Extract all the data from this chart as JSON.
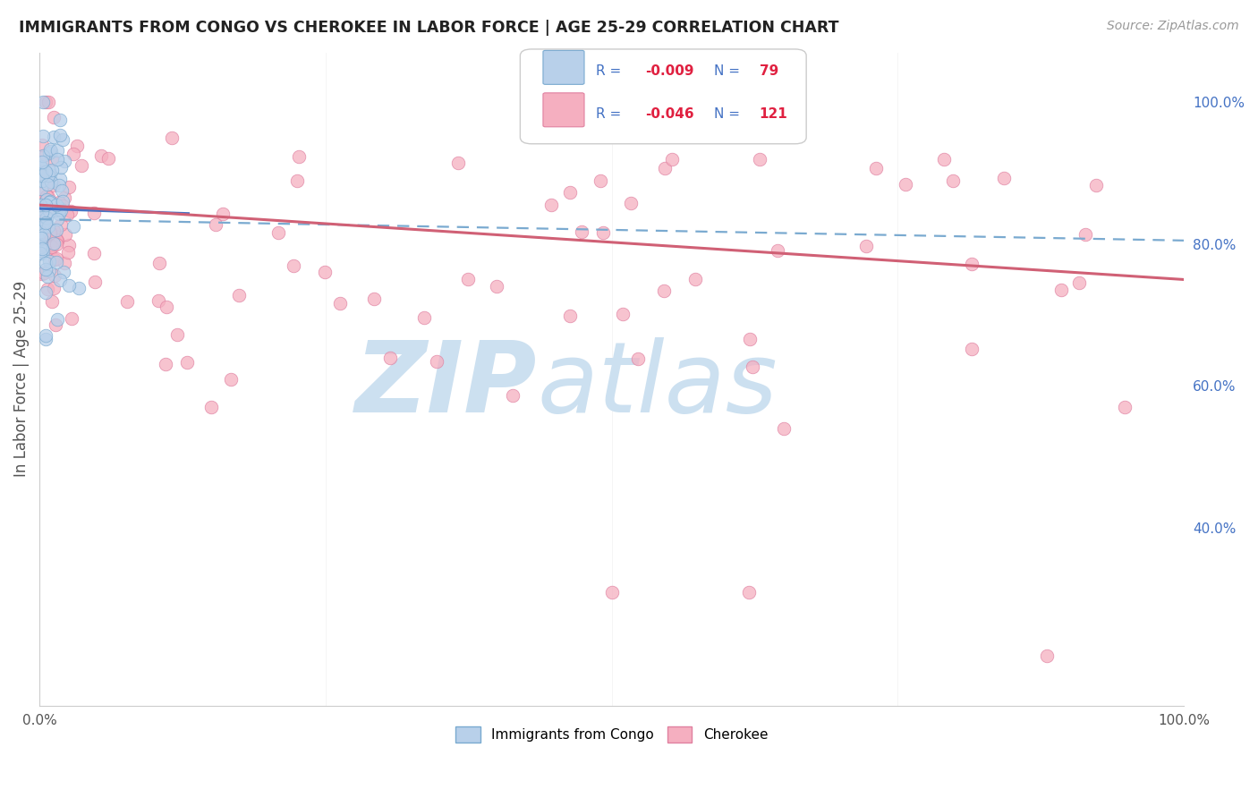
{
  "title": "IMMIGRANTS FROM CONGO VS CHEROKEE IN LABOR FORCE | AGE 25-29 CORRELATION CHART",
  "source": "Source: ZipAtlas.com",
  "ylabel": "In Labor Force | Age 25-29",
  "xlim": [
    0.0,
    1.0
  ],
  "ylim": [
    0.15,
    1.07
  ],
  "x_tick_labels": [
    "0.0%",
    "",
    "",
    "",
    "100.0%"
  ],
  "y_ticks_right": [
    0.4,
    0.6,
    0.8,
    1.0
  ],
  "y_tick_labels_right": [
    "40.0%",
    "60.0%",
    "80.0%",
    "100.0%"
  ],
  "legend_R_congo": "-0.009",
  "legend_N_congo": "79",
  "legend_R_cherokee": "-0.046",
  "legend_N_cherokee": "121",
  "congo_fill": "#b8d0ea",
  "congo_edge": "#7aaad0",
  "cherokee_fill": "#f5afc0",
  "cherokee_edge": "#e080a0",
  "congo_solid_color": "#4472c4",
  "congo_dash_color": "#7aaad0",
  "cherokee_solid_color": "#d06075",
  "background_color": "#ffffff",
  "grid_color": "#e8e8e8",
  "title_color": "#222222",
  "source_color": "#999999",
  "axis_label_color": "#555555",
  "right_tick_color": "#4472c4",
  "bottom_tick_color": "#555555",
  "watermark_zip_color": "#cce0f0",
  "watermark_atlas_color": "#cce0f0",
  "legend_box_color": "#ffffff",
  "legend_box_edge": "#cccccc",
  "legend_text_blue": "#4472c4",
  "legend_text_red": "#e02040",
  "scatter_size": 110,
  "scatter_alpha": 0.75,
  "legend_bottom_label_congo": "Immigrants from Congo",
  "legend_bottom_label_cherokee": "Cherokee"
}
